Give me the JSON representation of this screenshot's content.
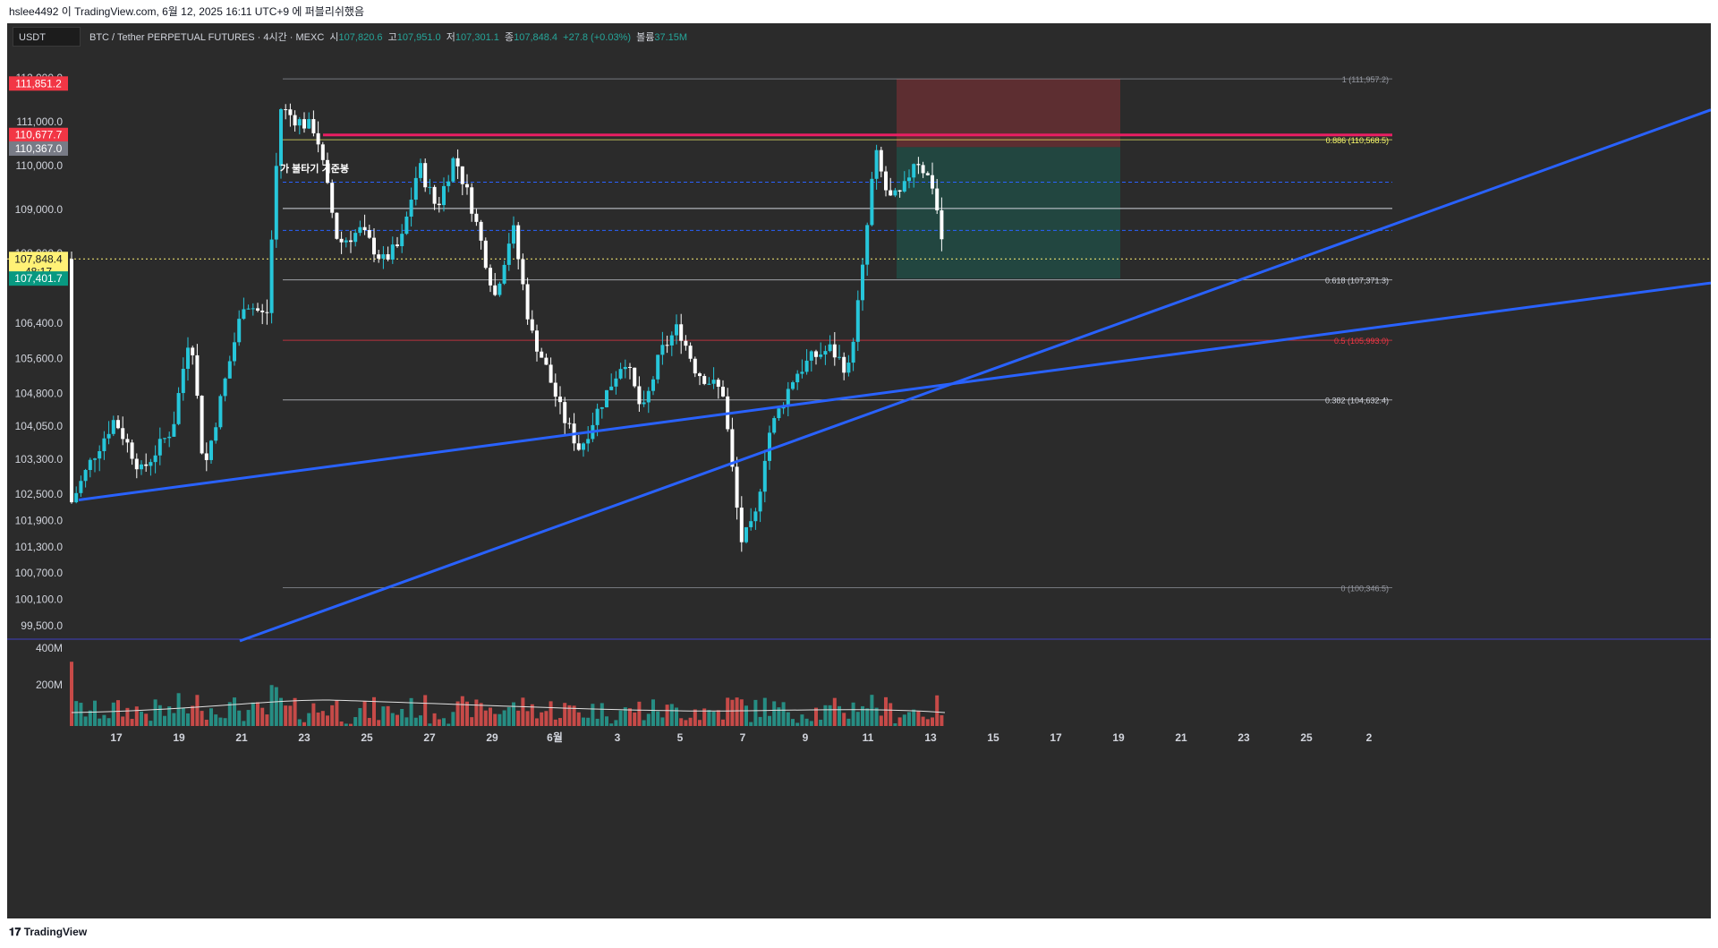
{
  "header": {
    "caption": "hslee4492 이 TradingView.com, 6월 12, 2025 16:11 UTC+9 에 퍼블리쉬했음"
  },
  "toolbar": {
    "symbol_box": "USDT"
  },
  "legend": {
    "title": "BTC / Tether PERPETUAL FUTURES · 4시간 · MEXC",
    "open_label": "시",
    "open_value": "107,820.6",
    "high_label": "고",
    "high_value": "107,951.0",
    "low_label": "저",
    "low_value": "107,301.1",
    "close_label": "종",
    "close_value": "107,848.4",
    "change_value": "+27.8 (+0.03%)",
    "volume_label": "볼륨",
    "volume_value": "37.15M"
  },
  "footer": {
    "brand": "TradingView"
  },
  "chart_data": {
    "type": "candlestick",
    "price_axis_ticks": [
      "112,000.0",
      "111,000.0",
      "110,000.0",
      "109,000.0",
      "108,000.0",
      "106,400.0",
      "105,600.0",
      "104,800.0",
      "104,050.0",
      "103,300.0",
      "102,500.0",
      "101,900.0",
      "101,300.0",
      "100,700.0",
      "100,100.0",
      "99,500.0"
    ],
    "volume_axis_ticks": [
      "400M",
      "200M"
    ],
    "time_axis_ticks": [
      "17",
      "19",
      "21",
      "23",
      "25",
      "27",
      "29",
      "6월",
      "3",
      "5",
      "7",
      "9",
      "11",
      "13",
      "15",
      "17",
      "19",
      "21",
      "23",
      "25",
      "2"
    ],
    "price_labels": [
      {
        "text": "111,851.2",
        "color": "#f23645",
        "value": 111851.2
      },
      {
        "text": "110,677.7",
        "color": "#f23645",
        "value": 110677.7
      },
      {
        "text": "110,367.0",
        "color": "#787b86",
        "value": 110367.0
      },
      {
        "text": "107,848.4",
        "color": "#fff176",
        "value": 107848.4,
        "sub": "48:17"
      },
      {
        "text": "107,401.7",
        "color": "#089981",
        "value": 107401.7
      }
    ],
    "fib_levels": [
      {
        "label": "1 (111,957.2)",
        "value": 111957.2,
        "color": "#9598a1"
      },
      {
        "label": "0.886 (110,568.5)",
        "value": 110568.5,
        "color": "#f7f76a"
      },
      {
        "label": "0.618 (107,371.3)",
        "value": 107371.3,
        "color": "#d1d4dc"
      },
      {
        "label": "0.5 (105,993.0)",
        "value": 105993.0,
        "color": "#f23645"
      },
      {
        "label": "0.382 (104,632.4)",
        "value": 104632.4,
        "color": "#d1d4dc"
      },
      {
        "label": "0 (100,346.5)",
        "value": 100346.5,
        "color": "#9598a1"
      }
    ],
    "annotation": "가 불타기 기준봉",
    "colors": {
      "up": "#26c6da",
      "down": "#ffffff",
      "trendline": "#2962ff",
      "resistance": "#e91e63",
      "vol_up": "#26a69a",
      "vol_down": "#ef5350"
    },
    "current_price": 107848.4
  }
}
